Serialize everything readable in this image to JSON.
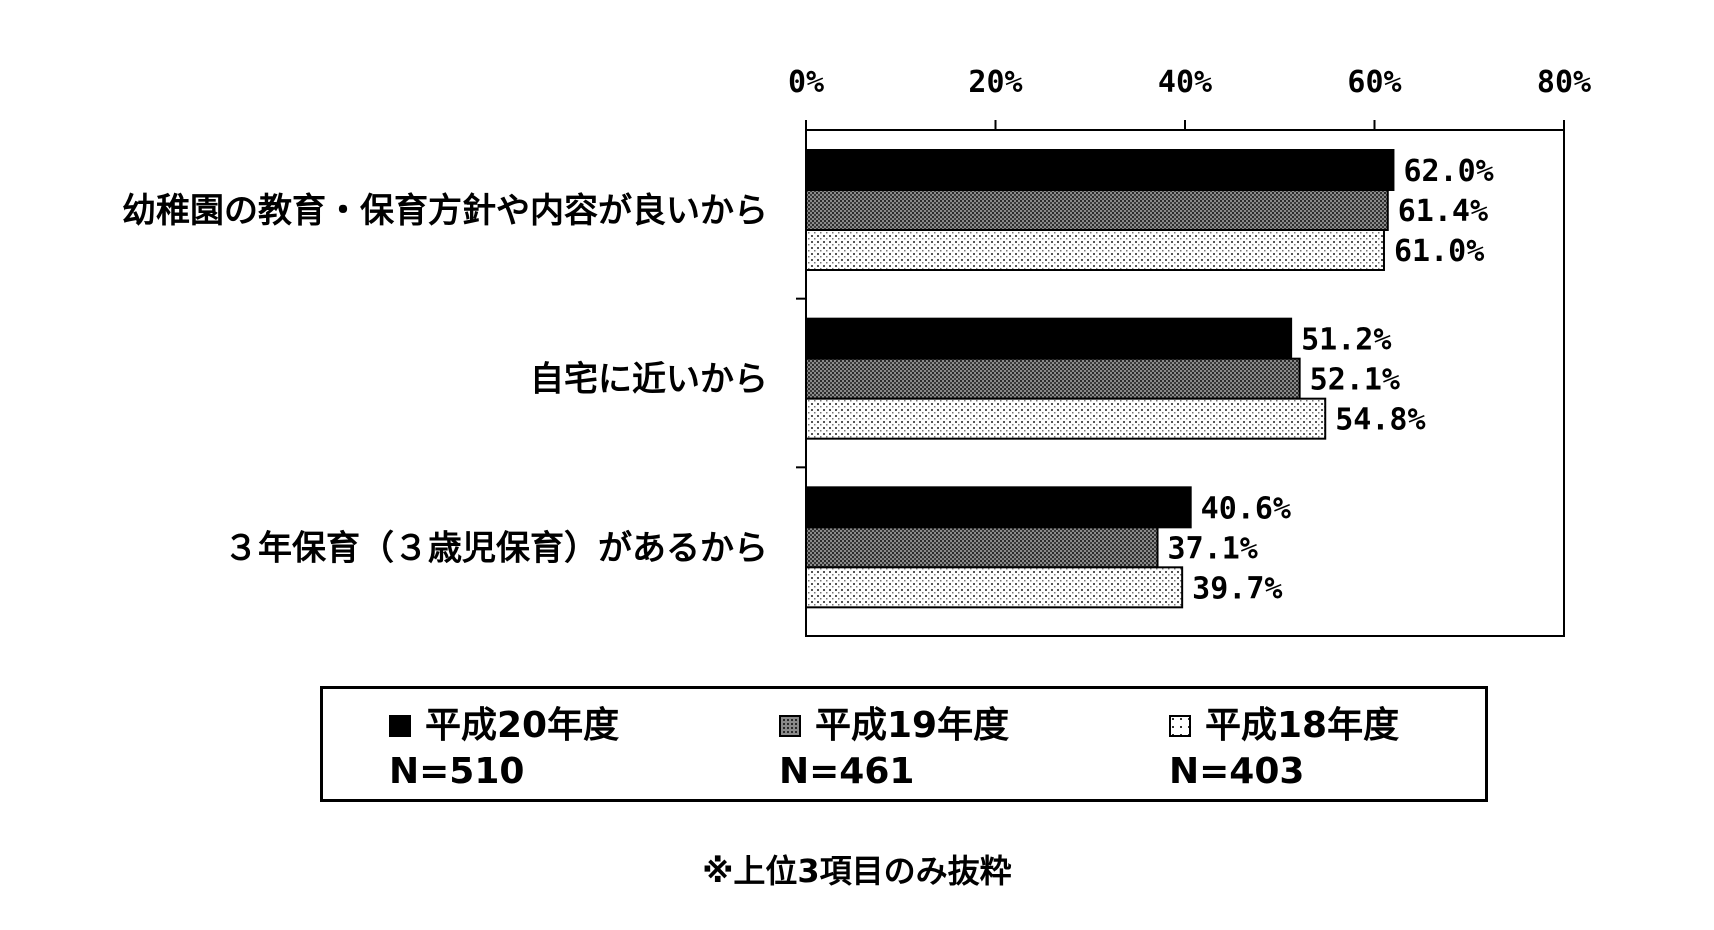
{
  "chart_data": {
    "type": "bar",
    "orientation": "horizontal",
    "categories": [
      "幼稚園の教育・保育方針や内容が良いから",
      "自宅に近いから",
      "３年保育（３歳児保育）があるから"
    ],
    "series": [
      {
        "name": "平成20年度",
        "n": "N=510",
        "pattern": "solid-black",
        "values": [
          62.0,
          51.2,
          40.6
        ],
        "labels": [
          "62.0%",
          "51.2%",
          "40.6%"
        ]
      },
      {
        "name": "平成19年度",
        "n": "N=461",
        "pattern": "dense-grey-grid",
        "values": [
          61.4,
          52.1,
          37.1
        ],
        "labels": [
          "61.4%",
          "52.1%",
          "37.1%"
        ]
      },
      {
        "name": "平成18年度",
        "n": "N=403",
        "pattern": "light-dots",
        "values": [
          61.0,
          54.8,
          39.7
        ],
        "labels": [
          "61.0%",
          "54.8%",
          "39.7%"
        ]
      }
    ],
    "xlim": [
      0,
      80
    ],
    "x_ticks": [
      0,
      20,
      40,
      60,
      80
    ],
    "x_tick_labels": [
      "0%",
      "20%",
      "40%",
      "60%",
      "80%"
    ],
    "axis_position": "top",
    "grid": false,
    "legend_position": "bottom"
  },
  "footnote": "※上位3項目のみ抜粋",
  "colors": {
    "series_20": "#000000",
    "series_19": "#6e6e6e",
    "series_18": "#efefef"
  }
}
